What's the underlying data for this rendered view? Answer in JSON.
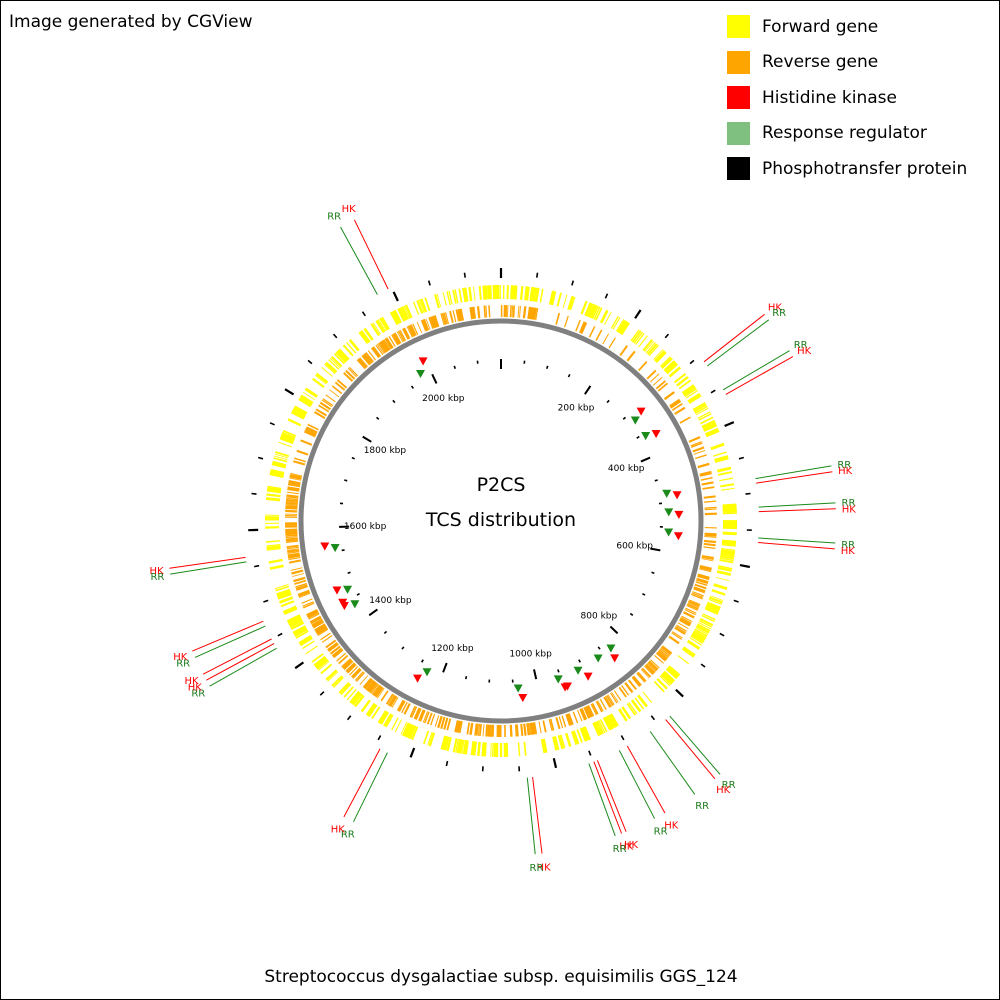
{
  "header": {
    "credit": "Image generated by CGView"
  },
  "legend": {
    "items": [
      {
        "label": "Forward gene",
        "color": "#ffff00"
      },
      {
        "label": "Reverse gene",
        "color": "#ffa500"
      },
      {
        "label": "Histidine kinase",
        "color": "#ff0000"
      },
      {
        "label": "Response regulator",
        "color": "#7fbf7f"
      },
      {
        "label": "Phosphotransfer protein",
        "color": "#000000"
      }
    ]
  },
  "map": {
    "title_line1": "P2CS",
    "title_line2": "TCS distribution",
    "genome_length_kbp": 2150,
    "scale_labels": [
      "200 kbp",
      "400 kbp",
      "600 kbp",
      "800 kbp",
      "1000 kbp",
      "1200 kbp",
      "1400 kbp",
      "1600 kbp",
      "1800 kbp",
      "2000 kbp"
    ],
    "colors": {
      "forward": "#ffff00",
      "reverse": "#ffa500",
      "hk": "#ff0000",
      "rr": "#1a8a1a",
      "backbone": "#808080",
      "callout_rr_text": "#1a7a1a"
    },
    "callouts": [
      {
        "type": "RR",
        "text": "RR",
        "kbp": 1979
      },
      {
        "type": "HK",
        "text": "HK",
        "kbp": 1995
      },
      {
        "type": "HK",
        "text": "HK",
        "kbp": 310
      },
      {
        "type": "RR",
        "text": "RR",
        "kbp": 317
      },
      {
        "type": "RR",
        "text": "RR",
        "kbp": 355
      },
      {
        "type": "HK",
        "text": "HK",
        "kbp": 362
      },
      {
        "type": "RR",
        "text": "RR",
        "kbp": 481
      },
      {
        "type": "HK",
        "text": "HK",
        "kbp": 487
      },
      {
        "type": "RR",
        "text": "RR",
        "kbp": 519
      },
      {
        "type": "HK",
        "text": "HK",
        "kbp": 525
      },
      {
        "type": "RR",
        "text": "RR",
        "kbp": 560
      },
      {
        "type": "HK",
        "text": "HK",
        "kbp": 566
      },
      {
        "type": "RR",
        "text": "RR",
        "kbp": 831
      },
      {
        "type": "HK",
        "text": "HK",
        "kbp": 838
      },
      {
        "type": "RR",
        "text": "RR",
        "kbp": 864
      },
      {
        "type": "HK",
        "text": "HK",
        "kbp": 900
      },
      {
        "type": "RR",
        "text": "RR",
        "kbp": 912
      },
      {
        "type": "HK",
        "text": "HK",
        "kbp": 944
      },
      {
        "type": "HK",
        "text": "HK",
        "kbp": 949
      },
      {
        "type": "RR",
        "text": "RR",
        "kbp": 956
      },
      {
        "type": "HK",
        "text": "HK",
        "kbp": 1033
      },
      {
        "type": "RR",
        "text": "RR",
        "kbp": 1040
      },
      {
        "type": "RR",
        "text": "RR",
        "kbp": 1231
      },
      {
        "type": "HK",
        "text": "HK",
        "kbp": 1242
      },
      {
        "type": "RR",
        "text": "RR",
        "kbp": 1436
      },
      {
        "type": "HK",
        "text": "HK",
        "kbp": 1443
      },
      {
        "type": "HK",
        "text": "HK",
        "kbp": 1450
      },
      {
        "type": "RR",
        "text": "RR",
        "kbp": 1469
      },
      {
        "type": "HK",
        "text": "HK",
        "kbp": 1476
      },
      {
        "type": "RR",
        "text": "RR",
        "kbp": 1558
      },
      {
        "type": "HK",
        "text": "HK",
        "kbp": 1564
      }
    ]
  },
  "footer": {
    "organism": "Streptococcus dysgalactiae subsp. equisimilis GGS_124"
  }
}
